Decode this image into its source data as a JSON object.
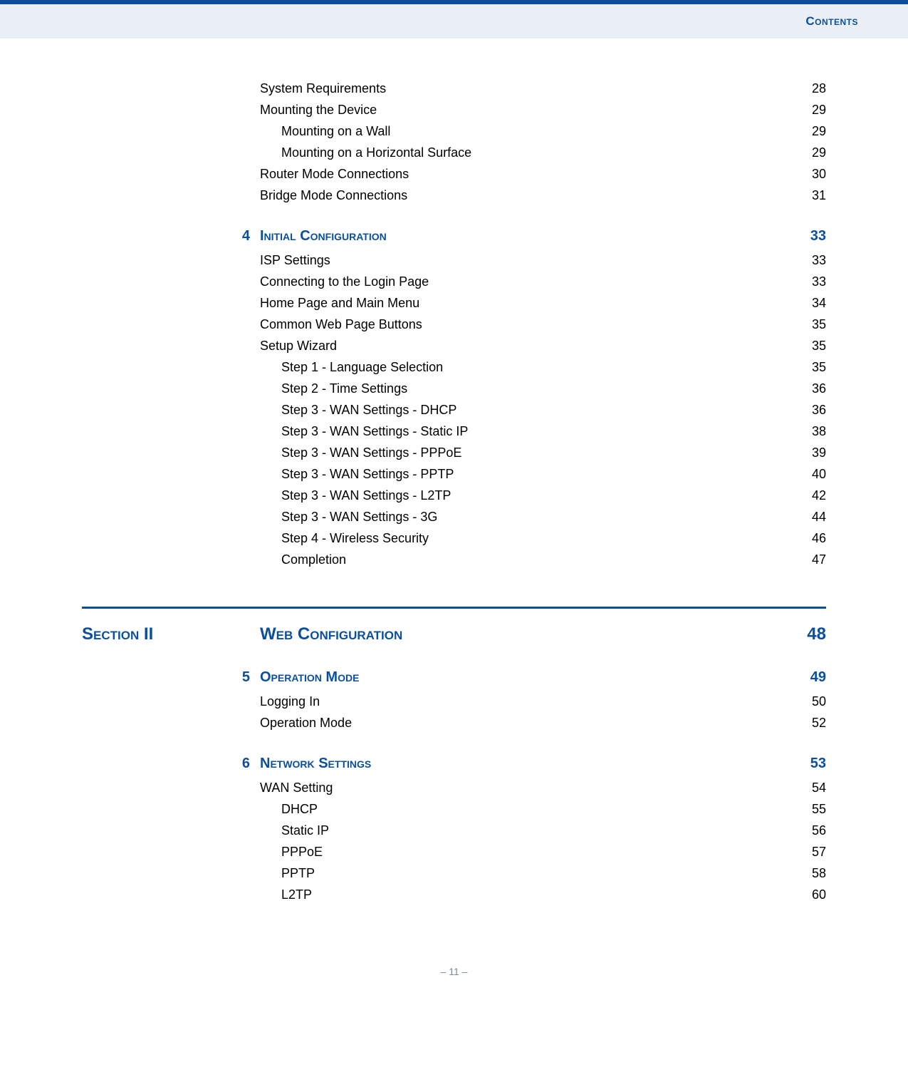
{
  "header": {
    "title": "Contents"
  },
  "toc": {
    "pre_items": [
      {
        "label": "System Requirements",
        "page": "28",
        "indent": 0
      },
      {
        "label": "Mounting the Device",
        "page": "29",
        "indent": 0
      },
      {
        "label": "Mounting on a Wall",
        "page": "29",
        "indent": 1
      },
      {
        "label": "Mounting on a Horizontal Surface",
        "page": "29",
        "indent": 1
      },
      {
        "label": "Router Mode Connections",
        "page": "30",
        "indent": 0
      },
      {
        "label": "Bridge Mode Connections",
        "page": "31",
        "indent": 0
      }
    ],
    "chapter4": {
      "num": "4",
      "title": "Initial Configuration",
      "page": "33",
      "items": [
        {
          "label": "ISP Settings",
          "page": "33",
          "indent": 0
        },
        {
          "label": "Connecting to the Login Page",
          "page": "33",
          "indent": 0
        },
        {
          "label": "Home Page and Main Menu",
          "page": "34",
          "indent": 0
        },
        {
          "label": "Common Web Page Buttons",
          "page": "35",
          "indent": 0
        },
        {
          "label": "Setup Wizard",
          "page": "35",
          "indent": 0
        },
        {
          "label": "Step 1 - Language Selection",
          "page": "35",
          "indent": 1
        },
        {
          "label": "Step 2 - Time Settings",
          "page": "36",
          "indent": 1
        },
        {
          "label": "Step 3 - WAN Settings - DHCP",
          "page": "36",
          "indent": 1
        },
        {
          "label": "Step 3 - WAN Settings - Static IP",
          "page": "38",
          "indent": 1
        },
        {
          "label": "Step 3 - WAN Settings - PPPoE",
          "page": "39",
          "indent": 1
        },
        {
          "label": "Step 3 - WAN Settings - PPTP",
          "page": "40",
          "indent": 1
        },
        {
          "label": "Step 3 - WAN Settings - L2TP",
          "page": "42",
          "indent": 1
        },
        {
          "label": "Step 3 - WAN Settings - 3G",
          "page": "44",
          "indent": 1
        },
        {
          "label": "Step 4 - Wireless Security",
          "page": "46",
          "indent": 1
        },
        {
          "label": "Completion",
          "page": "47",
          "indent": 1
        }
      ]
    },
    "section2": {
      "label": "Section II",
      "title": "Web Configuration",
      "page": "48"
    },
    "chapter5": {
      "num": "5",
      "title": "Operation Mode",
      "page": "49",
      "items": [
        {
          "label": "Logging In",
          "page": "50",
          "indent": 0
        },
        {
          "label": "Operation Mode",
          "page": "52",
          "indent": 0
        }
      ]
    },
    "chapter6": {
      "num": "6",
      "title": "Network Settings",
      "page": "53",
      "items": [
        {
          "label": "WAN Setting",
          "page": "54",
          "indent": 0
        },
        {
          "label": "DHCP",
          "page": "55",
          "indent": 1
        },
        {
          "label": "Static IP",
          "page": "56",
          "indent": 1
        },
        {
          "label": "PPPoE",
          "page": "57",
          "indent": 1
        },
        {
          "label": "PPTP",
          "page": "58",
          "indent": 1
        },
        {
          "label": "L2TP",
          "page": "60",
          "indent": 1
        }
      ]
    }
  },
  "footer": {
    "page_number": "–  11  –"
  },
  "colors": {
    "accent": "#0b4f9c",
    "header_bg": "#e9eff5",
    "text": "#000000",
    "footer_text": "#7a8a99",
    "background": "#ffffff"
  }
}
